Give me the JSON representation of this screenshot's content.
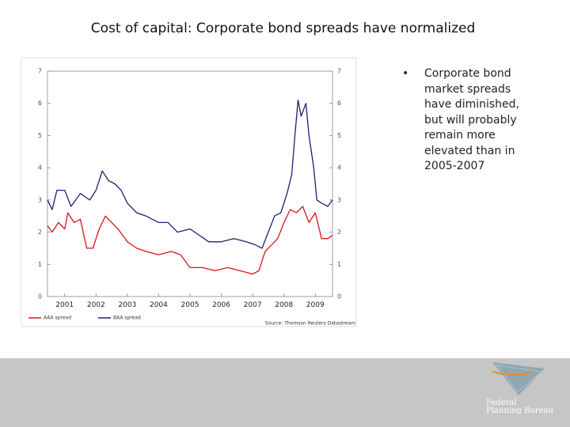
{
  "title": "Cost of capital: Corporate bond spreads have normalized",
  "bullet_lines": [
    "Corporate bond",
    "market spreads",
    "have diminished,",
    "but will probably",
    "remain more",
    "elevated than in",
    "2005-2007"
  ],
  "logo": [
    "Federal",
    "Planning Bureau"
  ],
  "chart_data": {
    "type": "line",
    "source": "Source: Thomson Reuters Datastream",
    "xlim": [
      2000.45,
      2009.55
    ],
    "xticks": [
      2001,
      2002,
      2003,
      2004,
      2005,
      2006,
      2007,
      2008,
      2009
    ],
    "ylim": [
      0,
      7
    ],
    "yticks": [
      0,
      1,
      2,
      3,
      4,
      5,
      6,
      7
    ],
    "grid": false,
    "legend": "bottom-left",
    "series": [
      {
        "name": "AAA spread",
        "color": "#d4161b",
        "x": [
          2000.45,
          2000.6,
          2000.8,
          2001.0,
          2001.1,
          2001.3,
          2001.5,
          2001.7,
          2001.9,
          2002.1,
          2002.3,
          2002.5,
          2002.7,
          2003.0,
          2003.3,
          2003.6,
          2004.0,
          2004.4,
          2004.7,
          2005.0,
          2005.4,
          2005.8,
          2006.2,
          2006.6,
          2007.0,
          2007.2,
          2007.4,
          2007.6,
          2007.8,
          2008.0,
          2008.2,
          2008.4,
          2008.6,
          2008.8,
          2009.0,
          2009.2,
          2009.4,
          2009.55
        ],
        "values": [
          2.2,
          2.0,
          2.3,
          2.1,
          2.6,
          2.3,
          2.4,
          1.5,
          1.5,
          2.1,
          2.5,
          2.3,
          2.1,
          1.7,
          1.5,
          1.4,
          1.3,
          1.4,
          1.3,
          0.9,
          0.9,
          0.8,
          0.9,
          0.8,
          0.7,
          0.8,
          1.4,
          1.6,
          1.8,
          2.3,
          2.7,
          2.6,
          2.8,
          2.3,
          2.6,
          1.8,
          1.8,
          1.9
        ]
      },
      {
        "name": "BAA spread",
        "color": "#1f1f6e",
        "x": [
          2000.45,
          2000.6,
          2000.75,
          2001.0,
          2001.2,
          2001.5,
          2001.8,
          2002.0,
          2002.2,
          2002.4,
          2002.6,
          2002.8,
          2003.0,
          2003.3,
          2003.6,
          2004.0,
          2004.3,
          2004.6,
          2005.0,
          2005.3,
          2005.6,
          2006.0,
          2006.4,
          2006.8,
          2007.1,
          2007.3,
          2007.5,
          2007.7,
          2007.9,
          2008.1,
          2008.25,
          2008.35,
          2008.45,
          2008.55,
          2008.7,
          2008.8,
          2008.95,
          2009.05,
          2009.2,
          2009.4,
          2009.55
        ],
        "values": [
          3.0,
          2.7,
          3.3,
          3.3,
          2.8,
          3.2,
          3.0,
          3.3,
          3.9,
          3.6,
          3.5,
          3.3,
          2.9,
          2.6,
          2.5,
          2.3,
          2.3,
          2.0,
          2.1,
          1.9,
          1.7,
          1.7,
          1.8,
          1.7,
          1.6,
          1.5,
          2.0,
          2.5,
          2.6,
          3.2,
          3.8,
          5.0,
          6.1,
          5.6,
          6.0,
          5.0,
          4.0,
          3.0,
          2.9,
          2.8,
          3.0
        ]
      }
    ]
  }
}
